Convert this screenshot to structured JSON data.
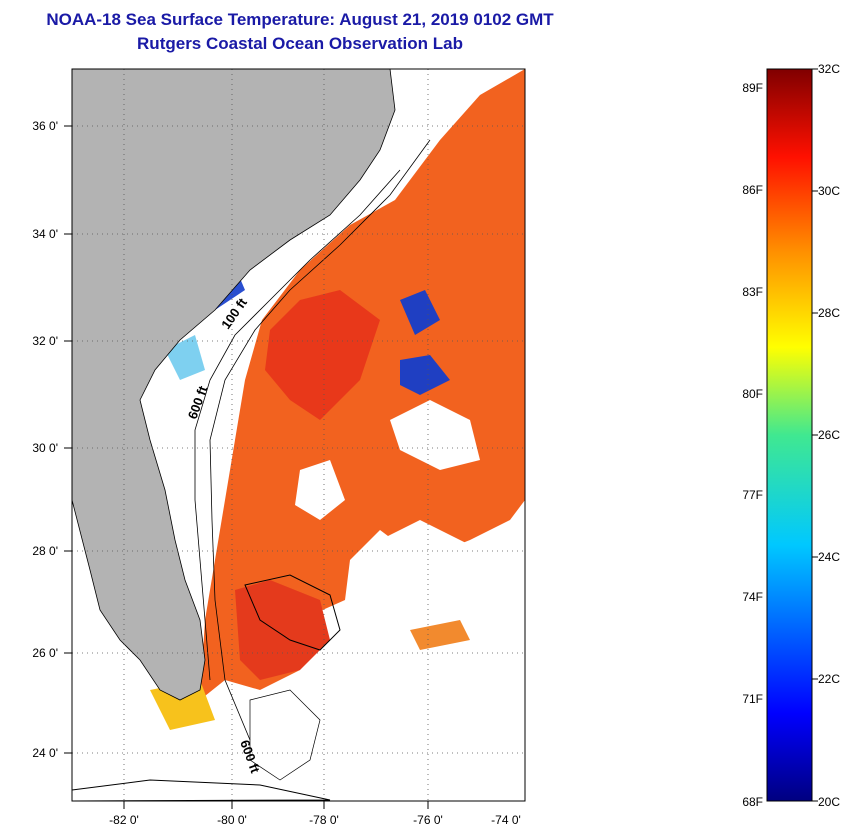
{
  "title": {
    "line1": "NOAA-18 Sea Surface Temperature:  August 21, 2019 0102 GMT",
    "line2": "Rutgers Coastal Ocean Observation Lab"
  },
  "map": {
    "lon_labels": [
      "-82 0'",
      "-80 0'",
      "-78 0'",
      "-76 0'",
      "-74 0'"
    ],
    "lat_labels": [
      "36 0'",
      "34 0'",
      "32 0'",
      "30 0'",
      "28 0'",
      "26 0'",
      "24 0'"
    ],
    "contour_labels": [
      "100 ft",
      "600 ft",
      "600 ft"
    ],
    "colors": {
      "land": "#b3b3b3",
      "cloud": "#ffffff",
      "sst_warm": "#f25a1e",
      "sst_hot": "#e8301a",
      "sst_cool": "#1f3fc2",
      "sst_mid": "#f7c21c"
    }
  },
  "colorbar": {
    "fahrenheit_labels": [
      "89F",
      "86F",
      "83F",
      "80F",
      "77F",
      "74F",
      "71F",
      "68F"
    ],
    "celsius_labels": [
      "32C",
      "30C",
      "28C",
      "26C",
      "24C",
      "22C",
      "20C"
    ],
    "range_c": [
      20,
      32
    ],
    "range_f": [
      68,
      89.6
    ]
  }
}
